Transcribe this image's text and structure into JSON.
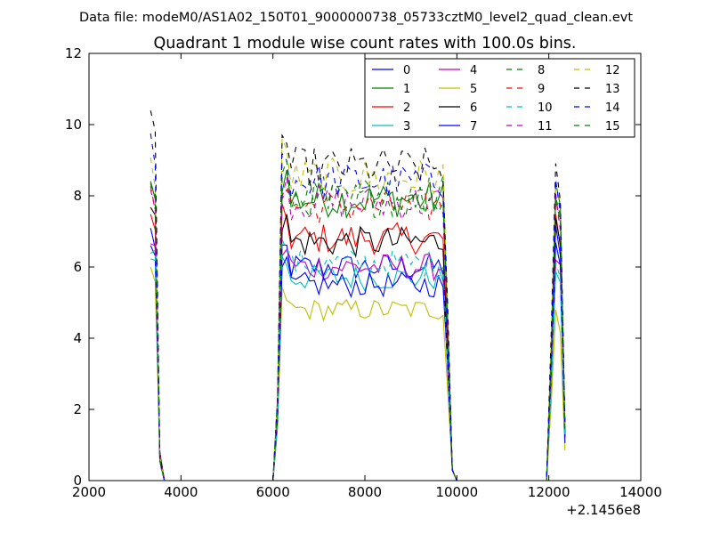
{
  "chart_data": {
    "type": "line",
    "suptitle": "Data file: modeM0/AS1A02_150T01_9000000738_05733cztM0_level2_quad_clean.evt",
    "title": "Quadrant 1 module wise count rates with 100.0s bins.",
    "xlabel": "",
    "ylabel": "",
    "xlim": [
      2000,
      14000
    ],
    "ylim": [
      0,
      12
    ],
    "x_offset_label": "+2.1456e8",
    "xticks": [
      2000,
      4000,
      6000,
      8000,
      10000,
      12000,
      14000
    ],
    "xtick_labels": [
      "2000",
      "4000",
      "6000",
      "8000",
      "10000",
      "12000",
      "14000"
    ],
    "yticks": [
      0,
      2,
      4,
      6,
      8,
      10,
      12
    ],
    "ytick_labels": [
      "0",
      "2",
      "4",
      "6",
      "8",
      "10",
      "12"
    ],
    "grid": false,
    "legend_position": "top-right",
    "legend_columns": 4,
    "segments": [
      {
        "start": 3340,
        "end": 3640,
        "n_points": 4,
        "pre_fall": [
          3540,
          3640
        ]
      },
      {
        "start": 6000,
        "end": 9950,
        "n_points": 40,
        "pre_fall": [
          9800,
          9950
        ]
      },
      {
        "start": 11950,
        "end": 12350,
        "n_points": 5,
        "pre_fall": []
      }
    ],
    "series": [
      {
        "name": "0",
        "color": "#0000ff",
        "dashed": false,
        "plateau": 6.0,
        "spike1": 7.0,
        "spike3": 7.0
      },
      {
        "name": "1",
        "color": "#008000",
        "dashed": false,
        "plateau": 7.9,
        "spike1": 8.2,
        "spike3": 8.3
      },
      {
        "name": "2",
        "color": "#ff0000",
        "dashed": false,
        "plateau": 6.8,
        "spike1": 7.3,
        "spike3": 7.4
      },
      {
        "name": "3",
        "color": "#00bfbf",
        "dashed": false,
        "plateau": 5.7,
        "spike1": 6.4,
        "spike3": 6.0
      },
      {
        "name": "4",
        "color": "#bf00bf",
        "dashed": false,
        "plateau": 6.0,
        "spike1": 6.8,
        "spike3": 6.3
      },
      {
        "name": "5",
        "color": "#bfbf00",
        "dashed": false,
        "plateau": 4.8,
        "spike1": 5.7,
        "spike3": 4.8
      },
      {
        "name": "6",
        "color": "#000000",
        "dashed": false,
        "plateau": 6.7,
        "spike1": 7.6,
        "spike3": 7.2
      },
      {
        "name": "7",
        "color": "#0000ff",
        "dashed": false,
        "plateau": 5.5,
        "spike1": 6.9,
        "spike3": 6.8
      },
      {
        "name": "8",
        "color": "#008000",
        "dashed": true,
        "plateau": 8.1,
        "spike1": 8.3,
        "spike3": 8.1
      },
      {
        "name": "9",
        "color": "#ff0000",
        "dashed": true,
        "plateau": 7.7,
        "spike1": 8.1,
        "spike3": 7.8
      },
      {
        "name": "10",
        "color": "#00bfbf",
        "dashed": true,
        "plateau": 6.1,
        "spike1": 6.6,
        "spike3": 6.2
      },
      {
        "name": "11",
        "color": "#bf00bf",
        "dashed": true,
        "plateau": 7.8,
        "spike1": 8.0,
        "spike3": 7.9
      },
      {
        "name": "12",
        "color": "#bfbf00",
        "dashed": true,
        "plateau": 8.5,
        "spike1": 8.9,
        "spike3": 8.6
      },
      {
        "name": "13",
        "color": "#000000",
        "dashed": true,
        "plateau": 8.8,
        "spike1": 10.1,
        "spike3": 8.7
      },
      {
        "name": "14",
        "color": "#0000ff",
        "dashed": true,
        "plateau": 8.4,
        "spike1": 9.6,
        "spike3": 8.3
      },
      {
        "name": "15",
        "color": "#008000",
        "dashed": true,
        "plateau": 7.9,
        "spike1": 8.4,
        "spike3": 8.1
      }
    ]
  }
}
